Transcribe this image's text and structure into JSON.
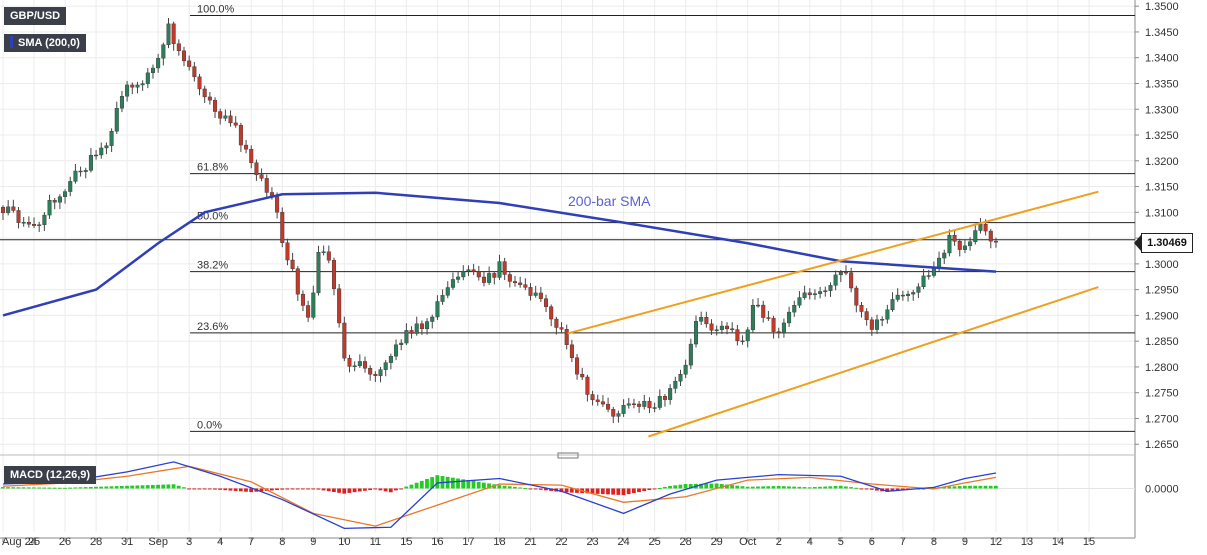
{
  "symbol": "GBP/USD",
  "indicators": {
    "sma_label": "SMA (200,0)",
    "macd_label": "MACD (12,26,9)"
  },
  "current_price": "1.30469",
  "colors": {
    "bull": "#2e7d5a",
    "bear": "#c0392b",
    "sma": "#2f3fb8",
    "channel": "#f0a020",
    "macd_line": "#2b3fd0",
    "signal_line": "#e8782a",
    "hist_pos": "#22cc22",
    "hist_neg": "#e02020"
  },
  "chart_data": {
    "type": "line",
    "title": "",
    "y_range": [
      1.264,
      1.351
    ],
    "y_ticks": [
      "1.3500",
      "1.3450",
      "1.3400",
      "1.3350",
      "1.3300",
      "1.3250",
      "1.3200",
      "1.3150",
      "1.3100",
      "1.3050",
      "1.3000",
      "1.2950",
      "1.2900",
      "1.2850",
      "1.2800",
      "1.2750",
      "1.2700",
      "1.2650"
    ],
    "y_tick_values": [
      1.35,
      1.345,
      1.34,
      1.335,
      1.33,
      1.325,
      1.32,
      1.315,
      1.31,
      1.305,
      1.3,
      1.295,
      1.29,
      1.285,
      1.28,
      1.275,
      1.27,
      1.265
    ],
    "x_labels": [
      "Aug 24",
      "25",
      "26",
      "28",
      "31",
      "Sep",
      "3",
      "4",
      "7",
      "8",
      "9",
      "10",
      "11",
      "15",
      "16",
      "17",
      "18",
      "21",
      "22",
      "23",
      "24",
      "25",
      "28",
      "29",
      "Oct",
      "2",
      "4",
      "5",
      "6",
      "7",
      "8",
      "9",
      "12",
      "13",
      "14",
      "15"
    ],
    "x_label_session": [
      0,
      1,
      2,
      3,
      4,
      5,
      6,
      7,
      8,
      9,
      10,
      11,
      12,
      13,
      14,
      15,
      16,
      17,
      18,
      19,
      20,
      21,
      22,
      23,
      24,
      25,
      26,
      27,
      28,
      29,
      30,
      31,
      32,
      33,
      34,
      35
    ],
    "fibonacci": [
      {
        "label": "100.0%",
        "value": 1.3482
      },
      {
        "label": "61.8%",
        "value": 1.3175
      },
      {
        "label": "50.0%",
        "value": 1.308
      },
      {
        "label": "38.2%",
        "value": 1.2985
      },
      {
        "label": "23.6%",
        "value": 1.2866
      },
      {
        "label": "0.0%",
        "value": 1.2675
      }
    ],
    "sma_annotation": "200-bar SMA",
    "sma_200": [
      {
        "s": 0,
        "v": 1.29
      },
      {
        "s": 3,
        "v": 1.295
      },
      {
        "s": 5,
        "v": 1.304
      },
      {
        "s": 6.5,
        "v": 1.31
      },
      {
        "s": 9,
        "v": 1.3135
      },
      {
        "s": 12,
        "v": 1.3138
      },
      {
        "s": 16,
        "v": 1.3118
      },
      {
        "s": 20,
        "v": 1.308
      },
      {
        "s": 24,
        "v": 1.304
      },
      {
        "s": 27,
        "v": 1.3005
      },
      {
        "s": 29.5,
        "v": 1.2995
      },
      {
        "s": 32,
        "v": 1.2985
      }
    ],
    "channel_upper": [
      {
        "s": 18.2,
        "v": 1.2865
      },
      {
        "s": 35.3,
        "v": 1.314
      }
    ],
    "channel_lower": [
      {
        "s": 20.8,
        "v": 1.2665
      },
      {
        "s": 35.3,
        "v": 1.2955
      }
    ],
    "close_path": [
      {
        "s": 0,
        "v": 1.311
      },
      {
        "s": 0.5,
        "v": 1.3085
      },
      {
        "s": 1,
        "v": 1.3065
      },
      {
        "s": 1.5,
        "v": 1.312
      },
      {
        "s": 2,
        "v": 1.315
      },
      {
        "s": 2.5,
        "v": 1.318
      },
      {
        "s": 3,
        "v": 1.321
      },
      {
        "s": 3.3,
        "v": 1.323
      },
      {
        "s": 3.7,
        "v": 1.33
      },
      {
        "s": 4,
        "v": 1.335
      },
      {
        "s": 4.5,
        "v": 1.3355
      },
      {
        "s": 5,
        "v": 1.34
      },
      {
        "s": 5.3,
        "v": 1.3465
      },
      {
        "s": 5.7,
        "v": 1.341
      },
      {
        "s": 6,
        "v": 1.338
      },
      {
        "s": 6.5,
        "v": 1.333
      },
      {
        "s": 7,
        "v": 1.329
      },
      {
        "s": 7.5,
        "v": 1.326
      },
      {
        "s": 8,
        "v": 1.32
      },
      {
        "s": 8.4,
        "v": 1.315
      },
      {
        "s": 8.8,
        "v": 1.312
      },
      {
        "s": 9,
        "v": 1.304
      },
      {
        "s": 9.5,
        "v": 1.295
      },
      {
        "s": 9.9,
        "v": 1.2885
      },
      {
        "s": 10.2,
        "v": 1.303
      },
      {
        "s": 10.6,
        "v": 1.299
      },
      {
        "s": 11,
        "v": 1.281
      },
      {
        "s": 11.5,
        "v": 1.28
      },
      {
        "s": 12,
        "v": 1.279
      },
      {
        "s": 12.5,
        "v": 1.283
      },
      {
        "s": 13,
        "v": 1.286
      },
      {
        "s": 13.5,
        "v": 1.288
      },
      {
        "s": 14,
        "v": 1.292
      },
      {
        "s": 14.5,
        "v": 1.296
      },
      {
        "s": 15,
        "v": 1.299
      },
      {
        "s": 15.5,
        "v": 1.296
      },
      {
        "s": 16,
        "v": 1.2995
      },
      {
        "s": 16.5,
        "v": 1.296
      },
      {
        "s": 17,
        "v": 1.294
      },
      {
        "s": 17.5,
        "v": 1.292
      },
      {
        "s": 18,
        "v": 1.287
      },
      {
        "s": 18.5,
        "v": 1.279
      },
      {
        "s": 19,
        "v": 1.274
      },
      {
        "s": 19.5,
        "v": 1.271
      },
      {
        "s": 20,
        "v": 1.272
      },
      {
        "s": 20.5,
        "v": 1.273
      },
      {
        "s": 21,
        "v": 1.272
      },
      {
        "s": 21.5,
        "v": 1.276
      },
      {
        "s": 22,
        "v": 1.28
      },
      {
        "s": 22.4,
        "v": 1.29
      },
      {
        "s": 22.8,
        "v": 1.287
      },
      {
        "s": 23.3,
        "v": 1.288
      },
      {
        "s": 23.8,
        "v": 1.284
      },
      {
        "s": 24.2,
        "v": 1.292
      },
      {
        "s": 24.6,
        "v": 1.289
      },
      {
        "s": 25,
        "v": 1.287
      },
      {
        "s": 25.5,
        "v": 1.292
      },
      {
        "s": 26,
        "v": 1.294
      },
      {
        "s": 26.5,
        "v": 1.295
      },
      {
        "s": 27,
        "v": 1.2995
      },
      {
        "s": 27.5,
        "v": 1.293
      },
      {
        "s": 28,
        "v": 1.288
      },
      {
        "s": 28.5,
        "v": 1.291
      },
      {
        "s": 29,
        "v": 1.294
      },
      {
        "s": 29.5,
        "v": 1.296
      },
      {
        "s": 30,
        "v": 1.298
      },
      {
        "s": 30.5,
        "v": 1.305
      },
      {
        "s": 31,
        "v": 1.303
      },
      {
        "s": 31.5,
        "v": 1.307
      },
      {
        "s": 32,
        "v": 1.3047
      }
    ],
    "macd": {
      "y_range": [
        -0.0075,
        0.0055
      ],
      "zero_label": "0.0000",
      "macd_line": [
        {
          "s": 0,
          "v": 0.0008
        },
        {
          "s": 2,
          "v": 0.0012
        },
        {
          "s": 4,
          "v": 0.003
        },
        {
          "s": 5.5,
          "v": 0.0048
        },
        {
          "s": 7,
          "v": 0.0022
        },
        {
          "s": 9,
          "v": -0.002
        },
        {
          "s": 11,
          "v": -0.0072
        },
        {
          "s": 12.5,
          "v": -0.007
        },
        {
          "s": 14,
          "v": 0.001
        },
        {
          "s": 16,
          "v": 0.0018
        },
        {
          "s": 18,
          "v": -0.0005
        },
        {
          "s": 20,
          "v": -0.0045
        },
        {
          "s": 21.5,
          "v": -0.001
        },
        {
          "s": 23,
          "v": 0.0015
        },
        {
          "s": 25,
          "v": 0.0025
        },
        {
          "s": 27,
          "v": 0.0022
        },
        {
          "s": 28.5,
          "v": -0.0005
        },
        {
          "s": 30,
          "v": 0.0002
        },
        {
          "s": 31,
          "v": 0.0018
        },
        {
          "s": 32,
          "v": 0.0028
        }
      ],
      "signal_line": [
        {
          "s": 0,
          "v": 0.0004
        },
        {
          "s": 2,
          "v": 0.001
        },
        {
          "s": 4,
          "v": 0.0022
        },
        {
          "s": 6,
          "v": 0.004
        },
        {
          "s": 8,
          "v": 0.0012
        },
        {
          "s": 10,
          "v": -0.0045
        },
        {
          "s": 12,
          "v": -0.0068
        },
        {
          "s": 14,
          "v": -0.003
        },
        {
          "s": 16,
          "v": 0.0008
        },
        {
          "s": 18,
          "v": 0.0006
        },
        {
          "s": 20,
          "v": -0.0025
        },
        {
          "s": 22,
          "v": -0.0015
        },
        {
          "s": 24,
          "v": 0.0015
        },
        {
          "s": 26,
          "v": 0.002
        },
        {
          "s": 28,
          "v": 0.0008
        },
        {
          "s": 30,
          "v": -0.0001
        },
        {
          "s": 31,
          "v": 0.001
        },
        {
          "s": 32,
          "v": 0.002
        }
      ]
    }
  }
}
